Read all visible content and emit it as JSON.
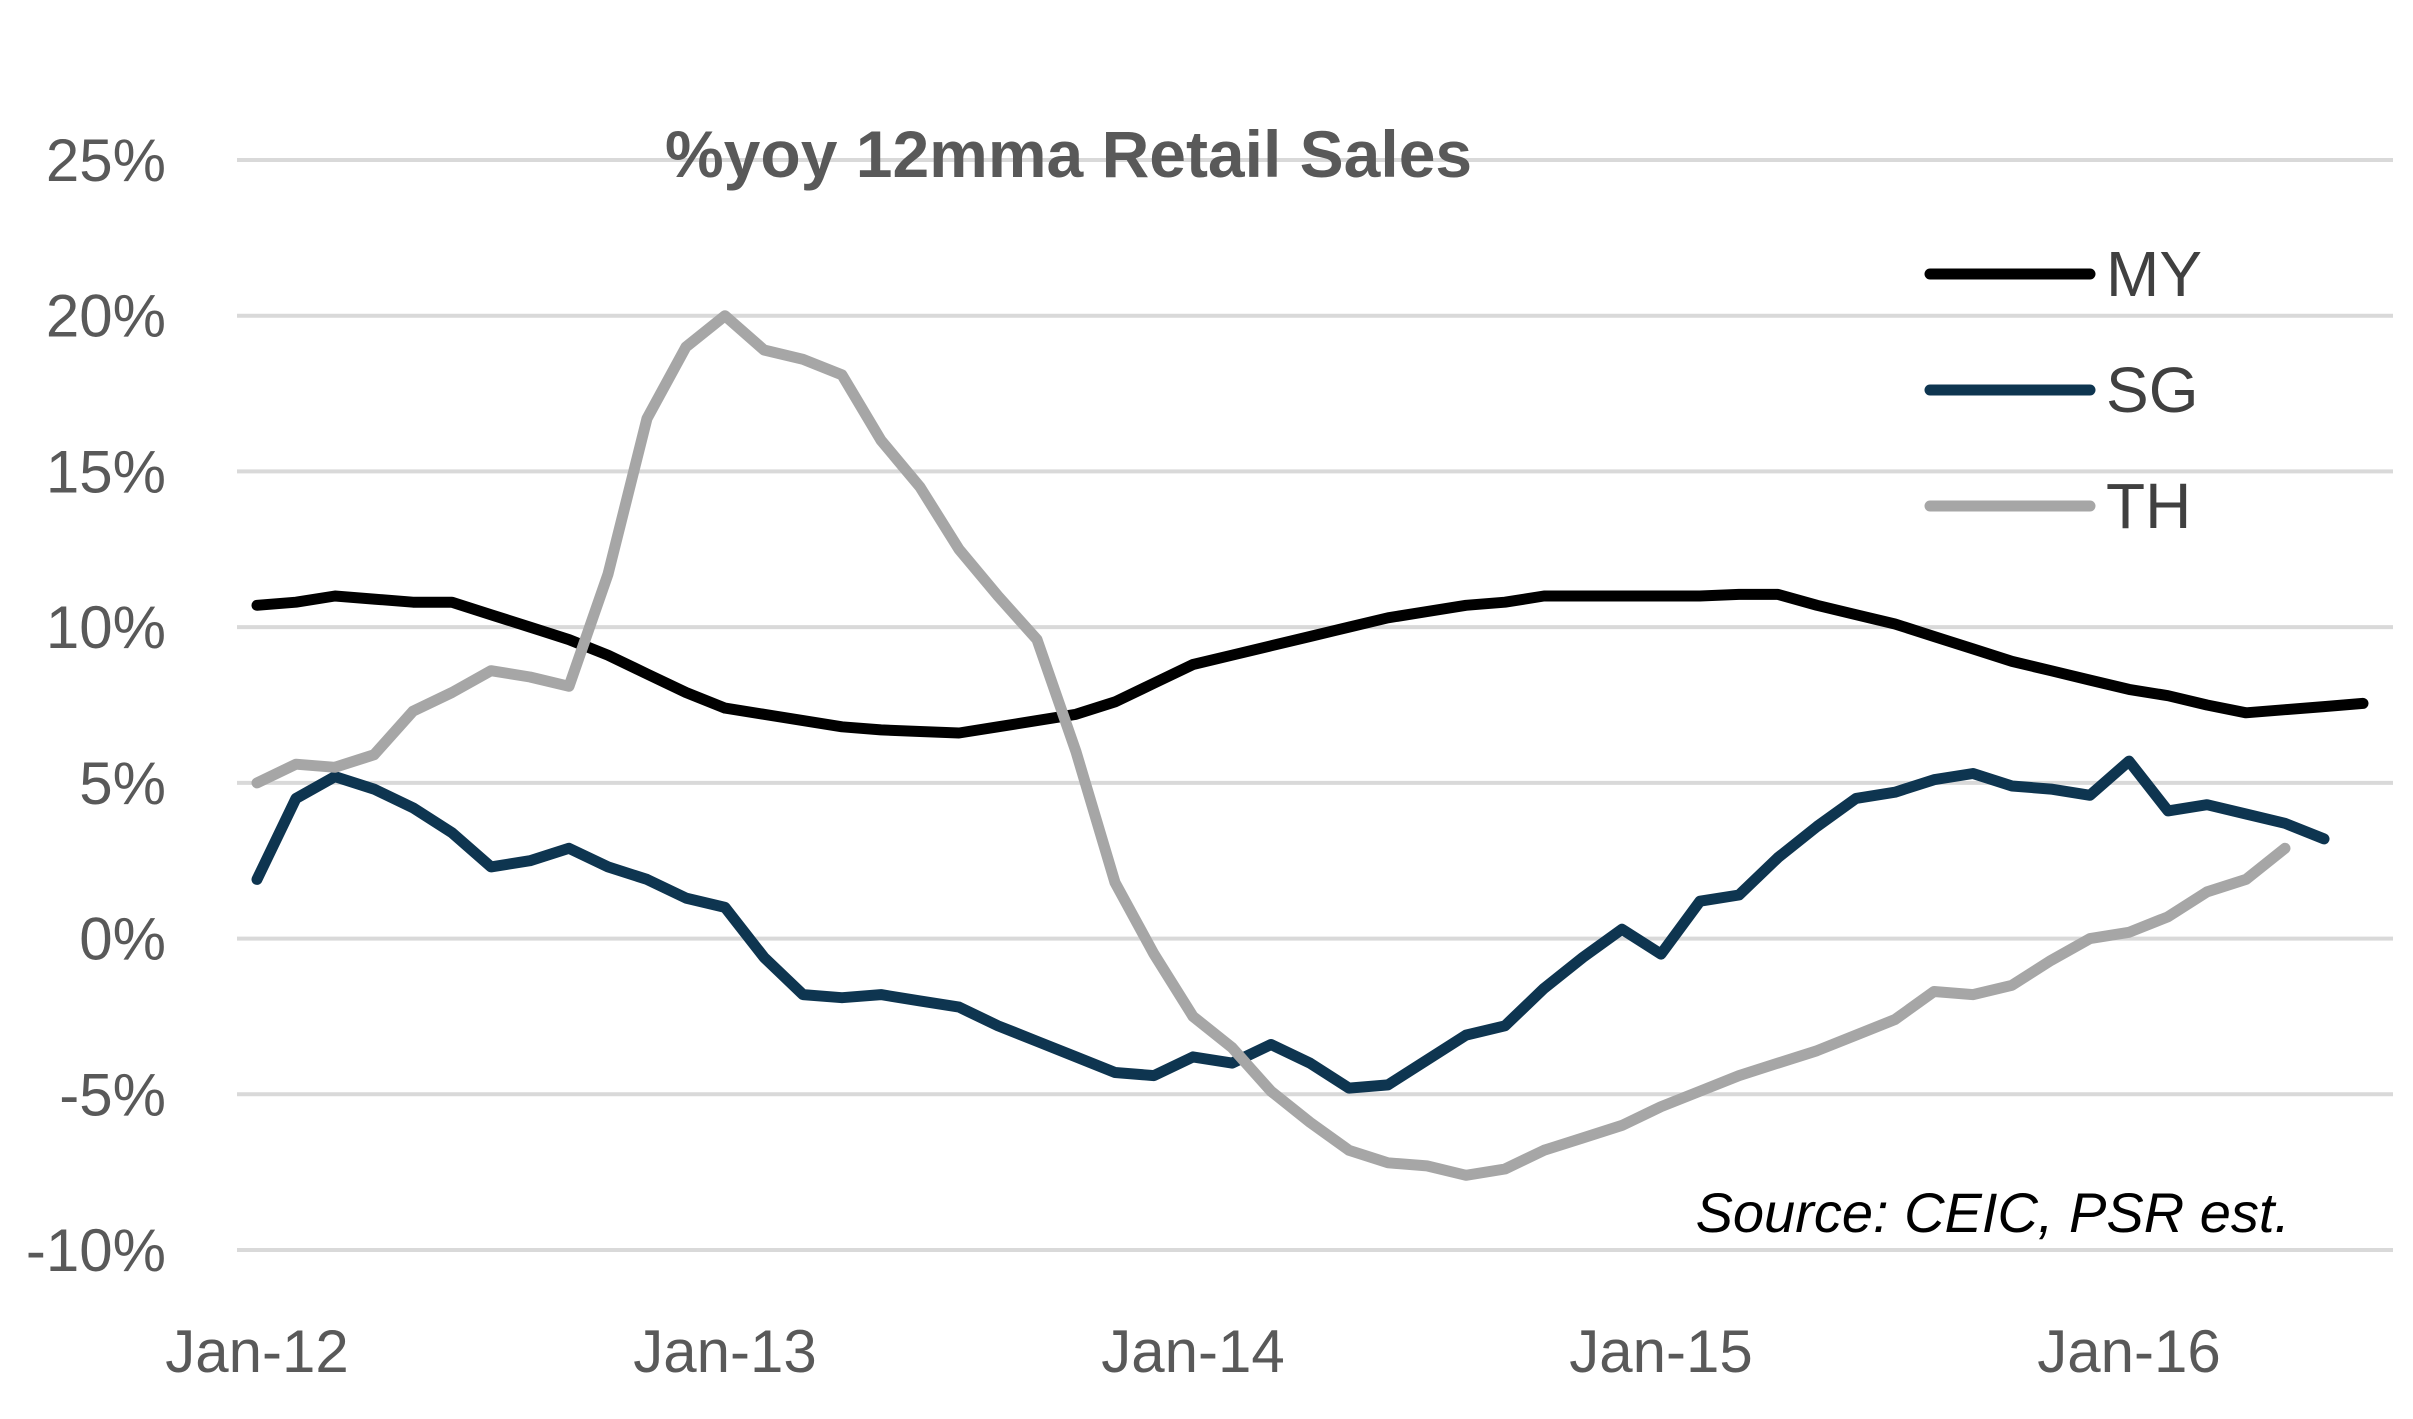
{
  "chart_data": {
    "type": "line",
    "title": "%yoy 12mma Retail Sales",
    "source": "Source: CEIC, PSR est.",
    "xlabel": "",
    "ylabel": "",
    "ylim": [
      -10,
      25
    ],
    "y_ticks": [
      "-10%",
      "-5%",
      "0%",
      "5%",
      "10%",
      "15%",
      "20%",
      "25%"
    ],
    "y_tick_values": [
      -10,
      -5,
      0,
      5,
      10,
      15,
      20,
      25
    ],
    "x_ticks": [
      "Jan-12",
      "Jan-13",
      "Jan-14",
      "Jan-15",
      "Jan-16"
    ],
    "x_tick_indices": [
      0,
      12,
      24,
      36,
      48
    ],
    "x_start": "Jan-12",
    "x_frequency": "monthly",
    "grid": true,
    "legend_position": "top-right",
    "series": [
      {
        "name": "MY",
        "color": "#000000",
        "values": [
          10.7,
          10.8,
          11.0,
          10.9,
          10.8,
          10.8,
          10.4,
          10.0,
          9.6,
          9.1,
          8.5,
          7.9,
          7.4,
          7.2,
          7.0,
          6.8,
          6.7,
          6.65,
          6.6,
          6.8,
          7.0,
          7.2,
          7.6,
          8.2,
          8.8,
          9.1,
          9.4,
          9.7,
          10.0,
          10.3,
          10.5,
          10.7,
          10.8,
          11.0,
          11.0,
          11.0,
          11.0,
          11.0,
          11.05,
          11.05,
          10.7,
          10.4,
          10.1,
          9.7,
          9.3,
          8.9,
          8.6,
          8.3,
          8.0,
          7.8,
          7.5,
          7.25,
          7.35,
          7.45,
          7.55
        ]
      },
      {
        "name": "SG",
        "color": "#0e3550",
        "values": [
          1.9,
          4.5,
          5.2,
          4.8,
          4.2,
          3.4,
          2.3,
          2.5,
          2.9,
          2.3,
          1.9,
          1.3,
          1.0,
          -0.6,
          -1.8,
          -1.9,
          -1.8,
          -2.0,
          -2.2,
          -2.8,
          -3.3,
          -3.8,
          -4.3,
          -4.4,
          -3.8,
          -4.0,
          -3.4,
          -4.0,
          -4.8,
          -4.7,
          -3.9,
          -3.1,
          -2.8,
          -1.6,
          -0.6,
          0.3,
          -0.5,
          1.2,
          1.4,
          2.6,
          3.6,
          4.5,
          4.7,
          5.1,
          5.3,
          4.9,
          4.8,
          4.6,
          5.7,
          4.1,
          4.3,
          4.0,
          3.7,
          3.2
        ]
      },
      {
        "name": "TH",
        "color": "#a6a6a6",
        "values": [
          5.0,
          5.6,
          5.5,
          5.9,
          7.3,
          7.9,
          8.6,
          8.4,
          8.1,
          11.7,
          16.7,
          19.0,
          20.0,
          18.9,
          18.6,
          18.1,
          16.0,
          14.5,
          12.5,
          11.0,
          9.6,
          6.0,
          1.8,
          -0.5,
          -2.5,
          -3.5,
          -4.9,
          -5.9,
          -6.8,
          -7.2,
          -7.3,
          -7.6,
          -7.4,
          -6.8,
          -6.4,
          -6.0,
          -5.4,
          -4.9,
          -4.4,
          -4.0,
          -3.6,
          -3.1,
          -2.6,
          -1.7,
          -1.8,
          -1.5,
          -0.7,
          0.0,
          0.2,
          0.7,
          1.5,
          1.9,
          2.9
        ]
      }
    ]
  }
}
